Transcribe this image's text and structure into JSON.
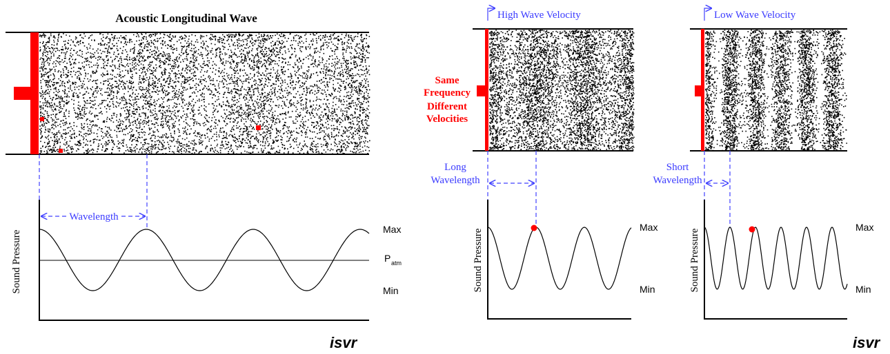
{
  "left_panel": {
    "title": "Acoustic Longitudinal Wave",
    "wavelength_label": "Wavelength",
    "y_axis_label": "Sound Pressure",
    "max_label": "Max",
    "patm_label": "P",
    "patm_subscript": "atm",
    "min_label": "Min",
    "logo": "isvr"
  },
  "middle_panel": {
    "velocity_label": "High Wave Velocity",
    "annotation": {
      "line1": [
        "Same",
        "Frequency"
      ],
      "line2": [
        "Different",
        "Velocities"
      ]
    },
    "wavelength_label": [
      "Long",
      "Wavelength"
    ],
    "y_axis_label": "Sound Pressure",
    "max_label": "Max",
    "min_label": "Min"
  },
  "right_panel": {
    "velocity_label": "Low Wave Velocity",
    "wavelength_label": [
      "Short",
      "Wavelength"
    ],
    "y_axis_label": "Sound Pressure",
    "max_label": "Max",
    "min_label": "Min",
    "logo": "isvr"
  }
}
